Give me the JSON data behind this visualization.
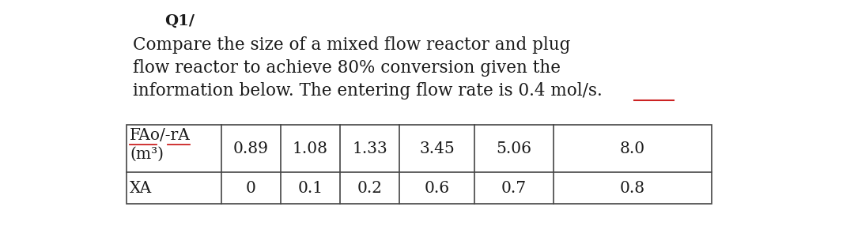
{
  "title": "Q1/",
  "body_line1": "Compare the size of a mixed flow reactor and plug",
  "body_line2": "flow reactor to achieve 80% conversion given the",
  "body_line3": "information below. The entering flow rate is 0.4 mol/s.",
  "table_row1_header_line1": "FAo/-rA",
  "table_row1_header_line2": "(m³)",
  "table_row1_values": [
    "0.89",
    "1.08",
    "1.33",
    "3.45",
    "5.06",
    "8.0"
  ],
  "table_row2_header": "XA",
  "table_row2_values": [
    "0",
    "0.1",
    "0.2",
    "0.6",
    "0.7",
    "0.8"
  ],
  "bg_color": "#ffffff",
  "text_color": "#1a1a1a",
  "title_fontsize": 14,
  "body_fontsize": 15.5,
  "table_fontsize": 14.5,
  "wavy_color": "#cc2222"
}
